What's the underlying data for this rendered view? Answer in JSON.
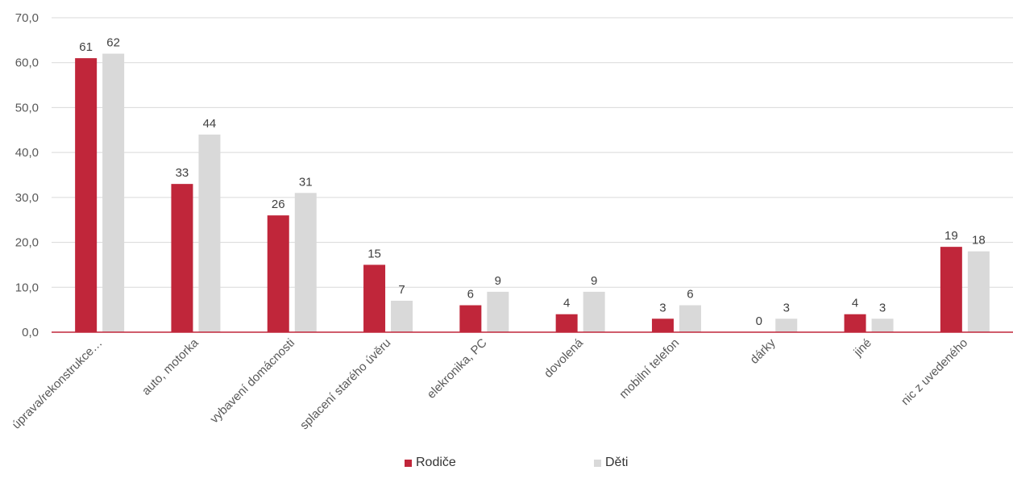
{
  "chart_data": {
    "type": "bar",
    "categories": [
      "úprava/rekonstrukce…",
      "auto, motorka",
      "vybavení domácnosti",
      "splacení starého úvěru",
      "elekronika, PC",
      "dovolená",
      "mobilní telefon",
      "dárky",
      "jiné",
      "nic z uvedeného"
    ],
    "series": [
      {
        "name": "Rodiče",
        "color": "#c0263a",
        "values": [
          61,
          33,
          26,
          15,
          6,
          4,
          3,
          0,
          4,
          19
        ],
        "labels": [
          "61",
          "33",
          "26",
          "15",
          "6",
          "4",
          "3",
          "0",
          "4",
          "19"
        ]
      },
      {
        "name": "Děti",
        "color": "#d9d9d9",
        "values": [
          62,
          44,
          31,
          7,
          9,
          9,
          6,
          3,
          3,
          18
        ],
        "labels": [
          "62",
          "44",
          "31",
          "7",
          "9",
          "9",
          "6",
          "3",
          "3",
          "18"
        ]
      }
    ],
    "ylim": [
      0,
      70
    ],
    "yticks": [
      "0,0",
      "10,0",
      "20,0",
      "30,0",
      "40,0",
      "50,0",
      "60,0",
      "70,0"
    ],
    "grid": true,
    "legend": "bottom",
    "title": "",
    "xlabel": "",
    "ylabel": ""
  }
}
